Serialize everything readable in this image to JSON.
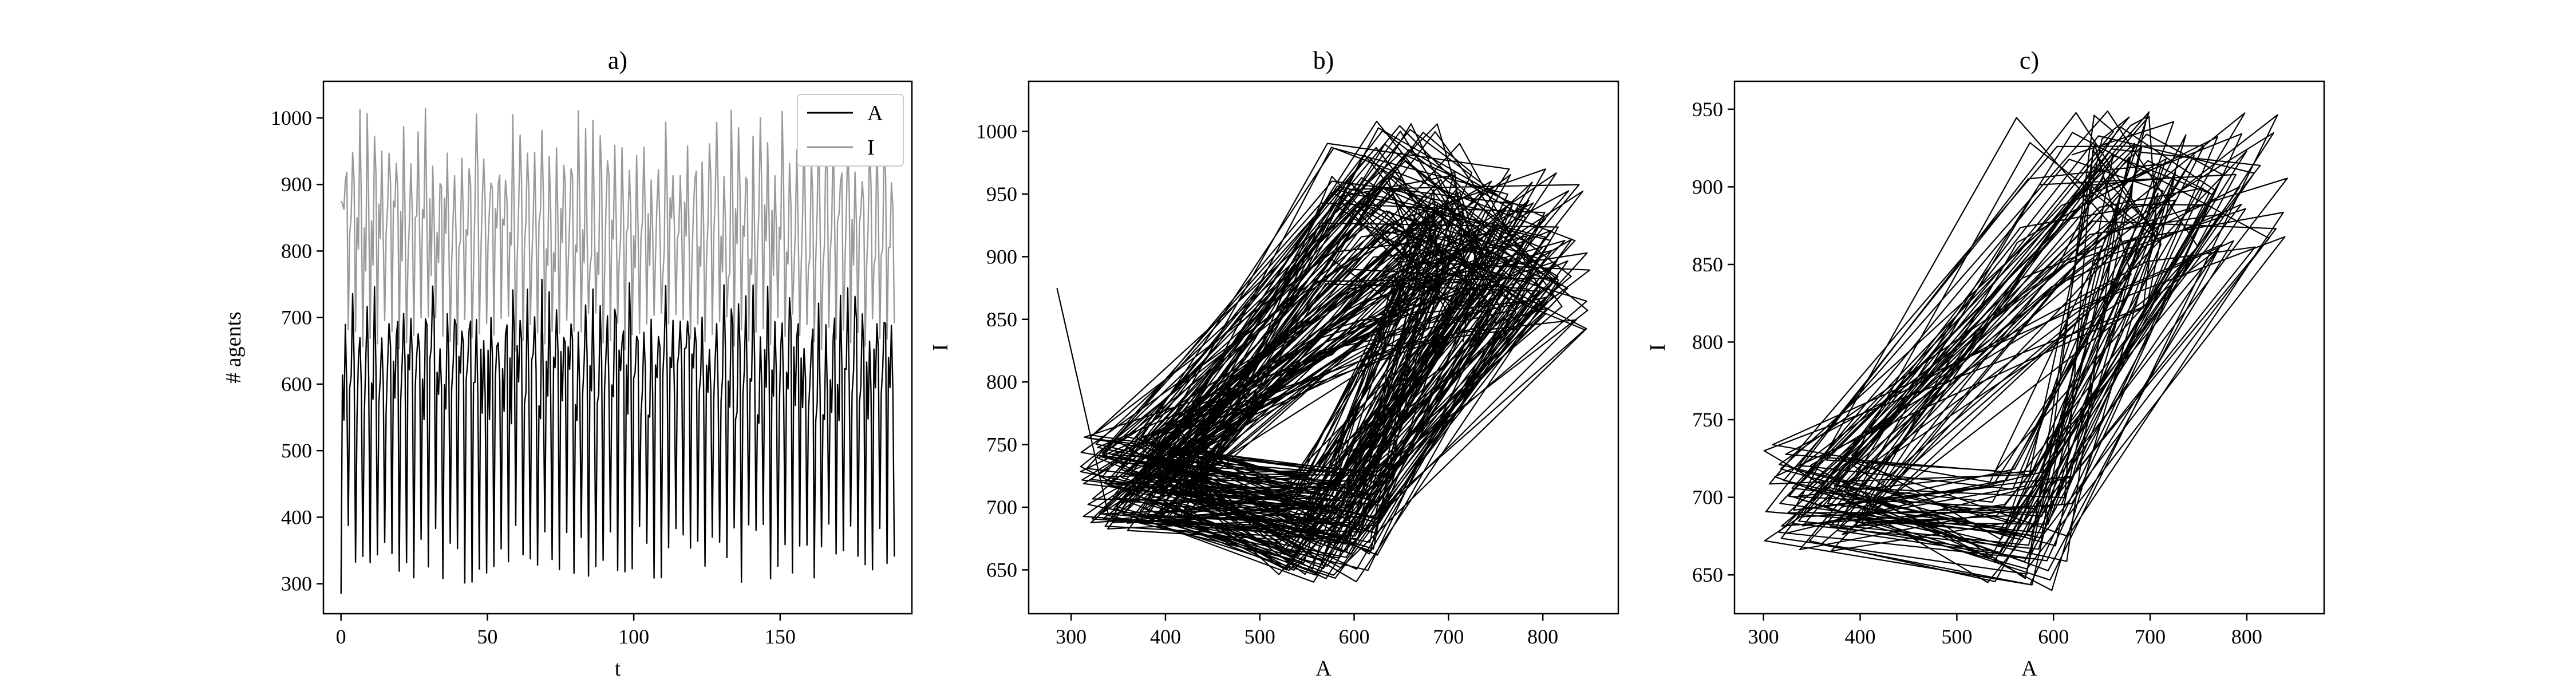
{
  "chart_data": [
    {
      "type": "line",
      "title": "a)",
      "xlabel": "t",
      "ylabel": "# agents",
      "xlim": [
        -6,
        195
      ],
      "ylim": [
        255,
        1055
      ],
      "xticks": [
        0,
        50,
        100,
        150
      ],
      "yticks": [
        300,
        400,
        500,
        600,
        700,
        800,
        900,
        1000
      ],
      "legend": "top-right",
      "series": [
        {
          "name": "A",
          "color": "#000000"
        },
        {
          "name": "I",
          "color": "#999999"
        }
      ],
      "t_range": [
        0,
        189
      ],
      "A_range": [
        285,
        850
      ],
      "I_range": [
        640,
        1025
      ],
      "period_approx": 2.6
    },
    {
      "type": "line",
      "title": "b)",
      "xlabel": "A",
      "ylabel": "I",
      "xlim": [
        255,
        880
      ],
      "ylim": [
        615,
        1040
      ],
      "xticks": [
        300,
        400,
        500,
        600,
        700,
        800
      ],
      "yticks": [
        650,
        700,
        750,
        800,
        850,
        900,
        950,
        1000
      ],
      "color": "#000000",
      "x_range": [
        285,
        850
      ],
      "y_range": [
        633,
        1025
      ]
    },
    {
      "type": "line",
      "title": "c)",
      "xlabel": "A",
      "ylabel": "I",
      "xlim": [
        270,
        880
      ],
      "ylim": [
        625,
        968
      ],
      "xticks": [
        300,
        400,
        500,
        600,
        700,
        800
      ],
      "yticks": [
        650,
        700,
        750,
        800,
        850,
        900,
        950
      ],
      "color": "#000000",
      "x_range": [
        300,
        850
      ],
      "y_range": [
        640,
        950
      ]
    }
  ]
}
